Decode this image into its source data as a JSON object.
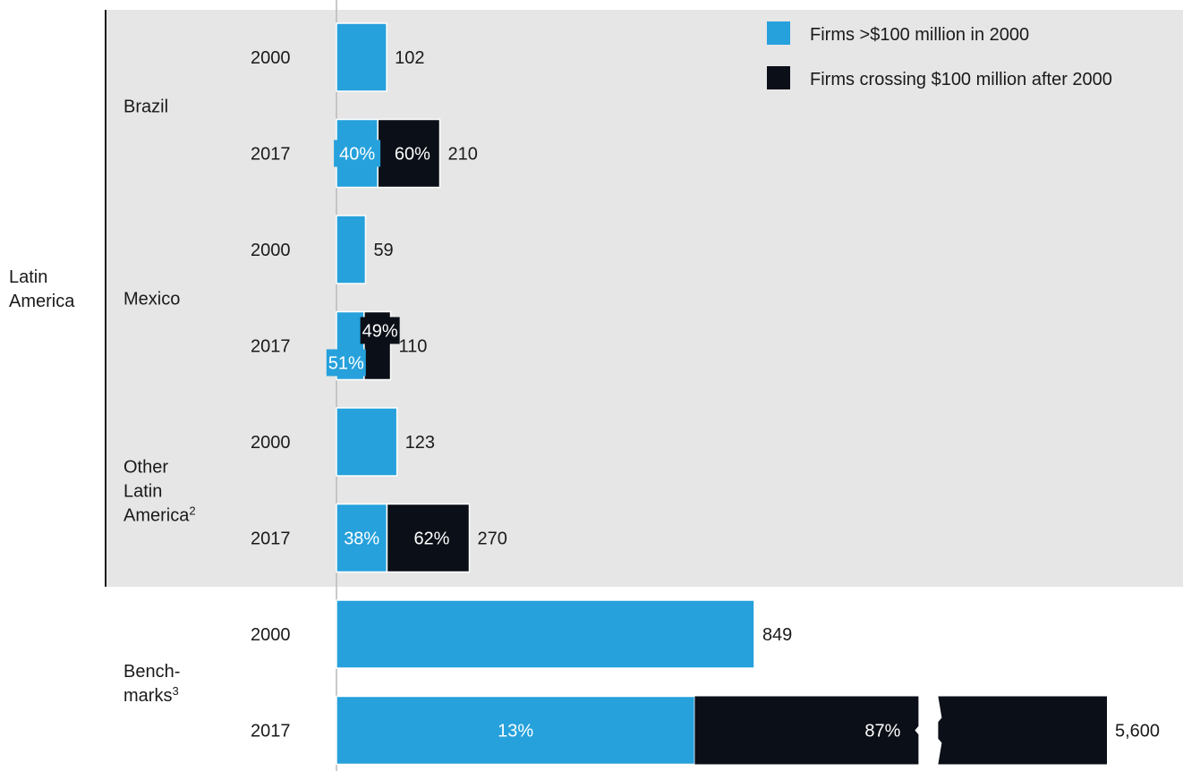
{
  "colors": {
    "background": "#ffffff",
    "panel": "#e6e6e6",
    "series_2000": "#26a1dc",
    "series_after": "#0b0f17",
    "axis": "#b9b9b9",
    "text": "#1a1a1a"
  },
  "legend": {
    "placement": "top-right",
    "items": [
      {
        "label": "Firms >$100 million in 2000",
        "color": "#26a1dc"
      },
      {
        "label": "Firms crossing $100 million after 2000",
        "color": "#0b0f17"
      }
    ]
  },
  "region_label": "Latin America",
  "chart_data": {
    "type": "bar",
    "orientation": "horizontal",
    "stacked": true,
    "series": [
      {
        "name": "Firms >$100 million in 2000"
      },
      {
        "name": "Firms crossing $100 million after 2000"
      }
    ],
    "groups": [
      {
        "label": "Brazil",
        "superscript": "",
        "region": "Latin America",
        "rows": [
          {
            "year": "2000",
            "total": 102,
            "total_label": "102",
            "segments": []
          },
          {
            "year": "2017",
            "total": 210,
            "total_label": "210",
            "segments": [
              {
                "series": 0,
                "share": 40,
                "label": "40%"
              },
              {
                "series": 1,
                "share": 60,
                "label": "60%"
              }
            ]
          }
        ]
      },
      {
        "label": "Mexico",
        "superscript": "",
        "region": "Latin America",
        "rows": [
          {
            "year": "2000",
            "total": 59,
            "total_label": "59",
            "segments": []
          },
          {
            "year": "2017",
            "total": 110,
            "total_label": "110",
            "segments": [
              {
                "series": 0,
                "share": 51,
                "label": "51%"
              },
              {
                "series": 1,
                "share": 49,
                "label": "49%"
              }
            ]
          }
        ]
      },
      {
        "label": "Other Latin America",
        "superscript": "2",
        "region": "Latin America",
        "rows": [
          {
            "year": "2000",
            "total": 123,
            "total_label": "123",
            "segments": []
          },
          {
            "year": "2017",
            "total": 270,
            "total_label": "270",
            "segments": [
              {
                "series": 0,
                "share": 38,
                "label": "38%"
              },
              {
                "series": 1,
                "share": 62,
                "label": "62%"
              }
            ]
          }
        ]
      },
      {
        "label": "Bench-marks",
        "superscript": "3",
        "region": "",
        "rows": [
          {
            "year": "2000",
            "total": 849,
            "total_label": "849",
            "segments": []
          },
          {
            "year": "2017",
            "total": 5600,
            "total_label": "5,600",
            "axis_break": true,
            "segments": [
              {
                "series": 0,
                "share": 13,
                "label": "13%"
              },
              {
                "series": 1,
                "share": 87,
                "label": "87%"
              }
            ]
          }
        ]
      }
    ]
  }
}
